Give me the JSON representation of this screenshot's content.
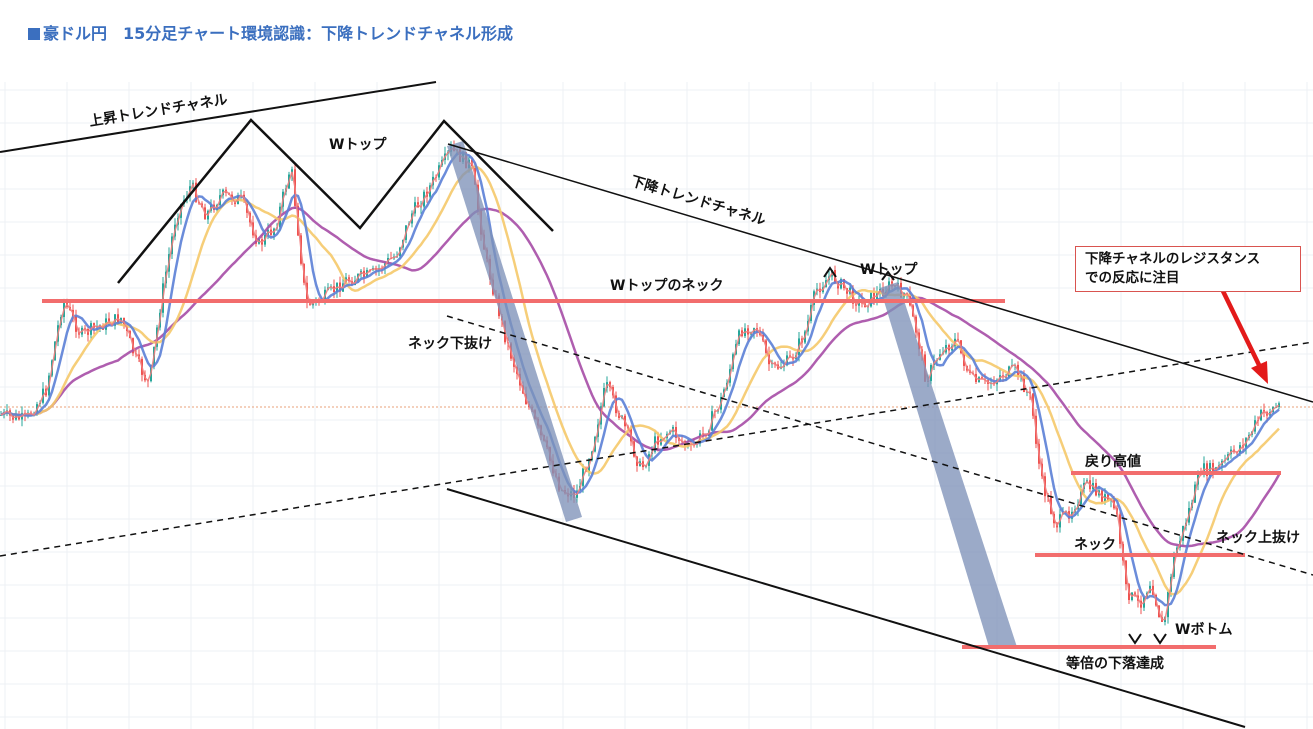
{
  "title": "■豪ドル円　15分足チャート環境認識：下降トレンドチャネル形成",
  "title_text": "豪ドル円　15分足チャート環境認識：下降トレンドチャネル形成",
  "callout": {
    "line1": "下降チャネルのレジスタンス",
    "line2": "での反応に注目"
  },
  "colors": {
    "up_candle": "#26a69a",
    "down_candle": "#ef5350",
    "ma_short": "#f08080",
    "ma_blue": "#5b7fd6",
    "ma_yellow": "#f5c96a",
    "ma_purple": "#a64ca6",
    "support_line": "#f26d6d",
    "impulse_band": "#7f92b8",
    "title": "#3b6fbf"
  },
  "chart_data": {
    "type": "candlestick",
    "title": "豪ドル円　15分足チャート環境認識：下降トレンドチャネル形成",
    "instrument": "豪ドル円",
    "timeframe": "15分足",
    "grid": true,
    "axes_visible": false,
    "annotations": {
      "up_channel": "上昇トレンドチャネル",
      "w_top_left": "Wトップ",
      "down_channel": "下降トレンドチャネル",
      "w_top_neck": "Wトップのネック",
      "w_top_right": "Wトップ",
      "neck_break_down": "ネック下抜け",
      "pullback_high": "戻り高値",
      "neck": "ネック",
      "neck_break_up": "ネック上抜け",
      "w_bottom": "Wボトム",
      "equal_drop": "等倍の下落達成"
    }
  }
}
